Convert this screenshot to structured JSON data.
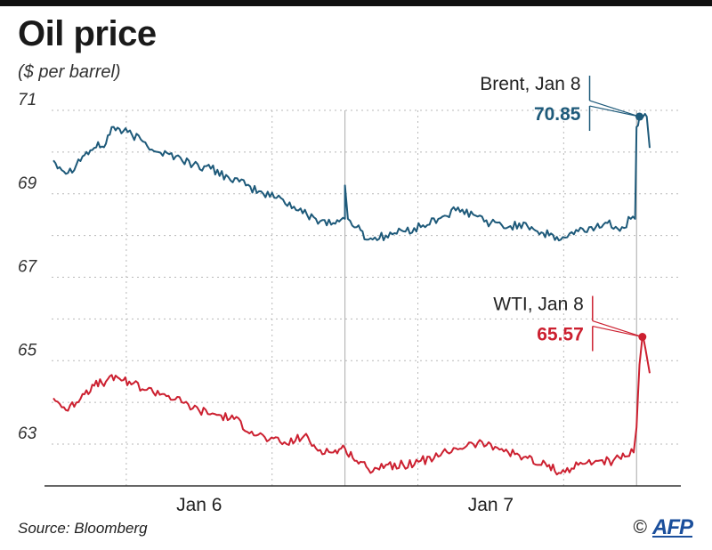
{
  "header": {
    "title": "Oil price",
    "subtitle": "($ per barrel)"
  },
  "footer": {
    "source": "Source: Bloomberg",
    "copyright_symbol": "©",
    "credit": "AFP"
  },
  "colors": {
    "brent": "#1e5a7a",
    "wti": "#cc2030",
    "grid": "#b8b8b8",
    "axis": "#333333",
    "day_divider": "#aaaaaa"
  },
  "chart_data": {
    "type": "line",
    "title": "Oil price",
    "ylabel": "($ per barrel)",
    "ylim": [
      62.2,
      71.3
    ],
    "y_ticks": [
      63,
      65,
      67,
      69,
      71
    ],
    "xlim": [
      0,
      2.1
    ],
    "x_ticks": [
      {
        "x": 0.5,
        "label": "Jan 6"
      },
      {
        "x": 1.5,
        "label": "Jan 7"
      }
    ],
    "day_dividers": [
      1.0,
      2.0
    ],
    "grid": true,
    "series": [
      {
        "name": "Brent",
        "key": "brent",
        "points": [
          [
            0.0,
            69.8
          ],
          [
            0.05,
            69.5
          ],
          [
            0.1,
            69.9
          ],
          [
            0.14,
            70.1
          ],
          [
            0.18,
            70.2
          ],
          [
            0.2,
            70.6
          ],
          [
            0.24,
            70.5
          ],
          [
            0.3,
            70.3
          ],
          [
            0.36,
            70.0
          ],
          [
            0.42,
            69.9
          ],
          [
            0.48,
            69.7
          ],
          [
            0.54,
            69.6
          ],
          [
            0.6,
            69.4
          ],
          [
            0.66,
            69.2
          ],
          [
            0.72,
            69.0
          ],
          [
            0.78,
            68.9
          ],
          [
            0.84,
            68.6
          ],
          [
            0.9,
            68.4
          ],
          [
            0.96,
            68.3
          ],
          [
            1.0,
            68.4
          ],
          [
            1.0,
            69.2
          ],
          [
            1.01,
            68.4
          ],
          [
            1.04,
            68.2
          ],
          [
            1.08,
            67.9
          ],
          [
            1.14,
            68.0
          ],
          [
            1.2,
            68.1
          ],
          [
            1.26,
            68.2
          ],
          [
            1.32,
            68.4
          ],
          [
            1.38,
            68.6
          ],
          [
            1.44,
            68.5
          ],
          [
            1.5,
            68.3
          ],
          [
            1.56,
            68.2
          ],
          [
            1.62,
            68.3
          ],
          [
            1.66,
            68.1
          ],
          [
            1.7,
            68.0
          ],
          [
            1.74,
            67.9
          ],
          [
            1.8,
            68.1
          ],
          [
            1.86,
            68.2
          ],
          [
            1.9,
            68.3
          ],
          [
            1.95,
            68.2
          ],
          [
            1.98,
            68.4
          ],
          [
            1.995,
            68.4
          ],
          [
            2.0,
            70.6
          ],
          [
            2.01,
            70.85
          ],
          [
            2.035,
            70.85
          ],
          [
            2.045,
            70.1
          ]
        ],
        "last_label": {
          "name": "Brent, Jan 8",
          "value": "70.85",
          "x": 2.01,
          "y": 70.85
        }
      },
      {
        "name": "WTI",
        "key": "wti",
        "points": [
          [
            0.0,
            64.1
          ],
          [
            0.05,
            63.8
          ],
          [
            0.1,
            64.2
          ],
          [
            0.14,
            64.4
          ],
          [
            0.18,
            64.5
          ],
          [
            0.22,
            64.6
          ],
          [
            0.26,
            64.5
          ],
          [
            0.32,
            64.3
          ],
          [
            0.38,
            64.2
          ],
          [
            0.44,
            64.0
          ],
          [
            0.5,
            63.8
          ],
          [
            0.56,
            63.7
          ],
          [
            0.62,
            63.6
          ],
          [
            0.68,
            63.3
          ],
          [
            0.74,
            63.1
          ],
          [
            0.8,
            63.0
          ],
          [
            0.86,
            63.2
          ],
          [
            0.9,
            62.9
          ],
          [
            0.96,
            62.8
          ],
          [
            1.0,
            62.9
          ],
          [
            1.04,
            62.6
          ],
          [
            1.08,
            62.4
          ],
          [
            1.14,
            62.5
          ],
          [
            1.2,
            62.5
          ],
          [
            1.26,
            62.6
          ],
          [
            1.32,
            62.7
          ],
          [
            1.38,
            62.9
          ],
          [
            1.44,
            63.0
          ],
          [
            1.5,
            63.0
          ],
          [
            1.56,
            62.8
          ],
          [
            1.62,
            62.7
          ],
          [
            1.66,
            62.5
          ],
          [
            1.7,
            62.5
          ],
          [
            1.74,
            62.3
          ],
          [
            1.8,
            62.5
          ],
          [
            1.86,
            62.6
          ],
          [
            1.92,
            62.6
          ],
          [
            1.96,
            62.7
          ],
          [
            1.99,
            62.8
          ],
          [
            2.0,
            63.4
          ],
          [
            2.005,
            64.2
          ],
          [
            2.01,
            64.9
          ],
          [
            2.02,
            65.57
          ],
          [
            2.03,
            65.3
          ],
          [
            2.045,
            64.7
          ]
        ],
        "last_label": {
          "name": "WTI, Jan 8",
          "value": "65.57",
          "x": 2.02,
          "y": 65.57
        }
      }
    ]
  }
}
